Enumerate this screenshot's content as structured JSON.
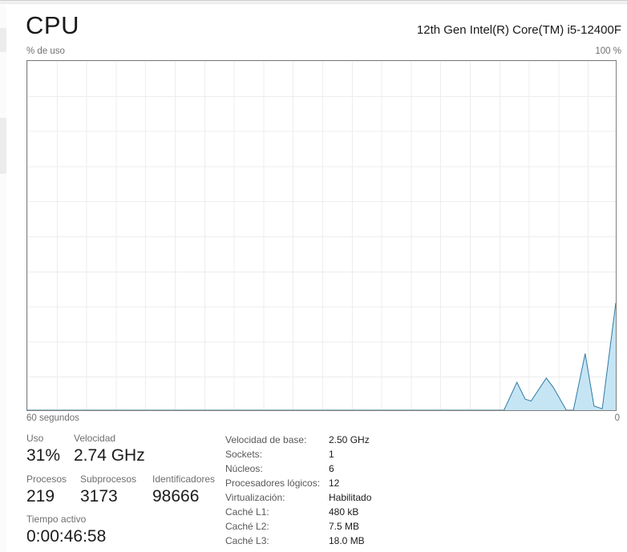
{
  "header": {
    "title": "CPU",
    "subtitle": "12th Gen Intel(R) Core(TM) i5-12400F"
  },
  "chart": {
    "top_left_label": "% de uso",
    "top_right_label": "100 %",
    "bottom_left_label": "60 segundos",
    "bottom_right_label": "0"
  },
  "chart_data": {
    "type": "area",
    "title": "% de uso",
    "xlabel": "60 segundos",
    "ylabel": "% de uso",
    "xlim": [
      0,
      100
    ],
    "ylim": [
      0,
      100
    ],
    "x_axis_ticks": [
      "60 segundos",
      "0"
    ],
    "y_axis_max_label": "100 %",
    "grid": true,
    "line_color": "#2f7aa3",
    "fill_color": "#c6e5f4",
    "series": [
      {
        "name": "cpu-usage-percent",
        "points": [
          [
            0,
            0
          ],
          [
            81,
            0
          ],
          [
            83.2,
            8
          ],
          [
            84.6,
            3.2
          ],
          [
            85.6,
            2.6
          ],
          [
            88.2,
            9.2
          ],
          [
            89.4,
            6.5
          ],
          [
            91.6,
            0
          ],
          [
            92.8,
            0
          ],
          [
            94.8,
            16.2
          ],
          [
            96.3,
            1.2
          ],
          [
            97.7,
            0.4
          ],
          [
            100,
            30.7
          ]
        ]
      }
    ]
  },
  "stats": {
    "primary": [
      {
        "label": "Uso",
        "value": "31%"
      },
      {
        "label": "Velocidad",
        "value": "2.74 GHz"
      }
    ],
    "secondary": [
      {
        "label": "Procesos",
        "value": "219"
      },
      {
        "label": "Subprocesos",
        "value": "3173"
      },
      {
        "label": "Identificadores",
        "value": "98666"
      }
    ],
    "uptime": {
      "label": "Tiempo activo",
      "value": "0:00:46:58"
    }
  },
  "details": [
    {
      "label": "Velocidad de base:",
      "value": "2.50 GHz"
    },
    {
      "label": "Sockets:",
      "value": "1"
    },
    {
      "label": "Núcleos:",
      "value": "6"
    },
    {
      "label": "Procesadores lógicos:",
      "value": "12"
    },
    {
      "label": "Virtualización:",
      "value": "Habilitado"
    },
    {
      "label": "Caché L1:",
      "value": "480 kB"
    },
    {
      "label": "Caché L2:",
      "value": "7.5 MB"
    },
    {
      "label": "Caché L3:",
      "value": "18.0 MB"
    }
  ]
}
